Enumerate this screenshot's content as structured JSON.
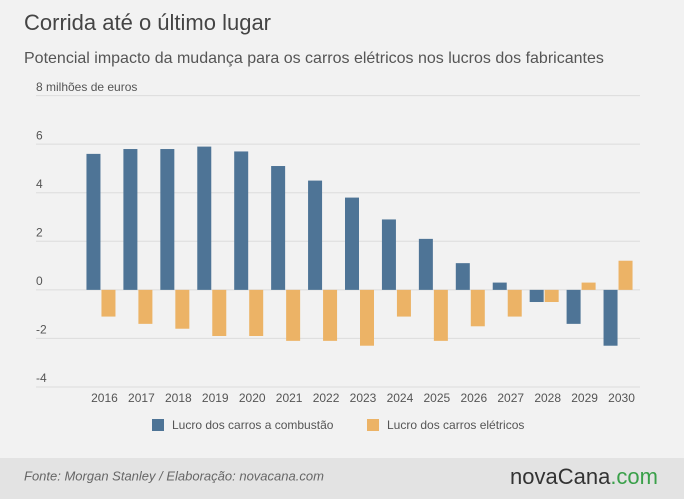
{
  "chart_data": {
    "type": "bar",
    "title": "Corrida até o último lugar",
    "subtitle": "Potencial impacto da mudança para os carros elétricos nos lucros dos fabricantes",
    "categories": [
      "2016",
      "2017",
      "2018",
      "2019",
      "2020",
      "2021",
      "2022",
      "2023",
      "2024",
      "2025",
      "2026",
      "2027",
      "2028",
      "2029",
      "2030"
    ],
    "series": [
      {
        "name": "Lucro dos carros a combustão",
        "color": "#4e7496",
        "values": [
          5.6,
          5.8,
          5.8,
          5.9,
          5.7,
          5.1,
          4.5,
          3.8,
          2.9,
          2.1,
          1.1,
          0.3,
          -0.5,
          -1.4,
          -2.3
        ]
      },
      {
        "name": "Lucro dos carros elétricos",
        "color": "#ecb366",
        "values": [
          -1.1,
          -1.4,
          -1.6,
          -1.9,
          -1.9,
          -2.1,
          -2.1,
          -2.3,
          -1.1,
          -2.1,
          -1.5,
          -1.1,
          -0.5,
          0.3,
          1.2
        ]
      }
    ],
    "ylim": [
      -4,
      8
    ],
    "yticks": [
      -4,
      -2,
      0,
      2,
      4,
      6,
      {
        "value": 8,
        "label": "8 milhões de euros"
      }
    ],
    "grid": true,
    "source": "Fonte:  Morgan Stanley / Elaboração: novacana.com",
    "logo": [
      "nova",
      "Cana",
      ".com"
    ]
  }
}
